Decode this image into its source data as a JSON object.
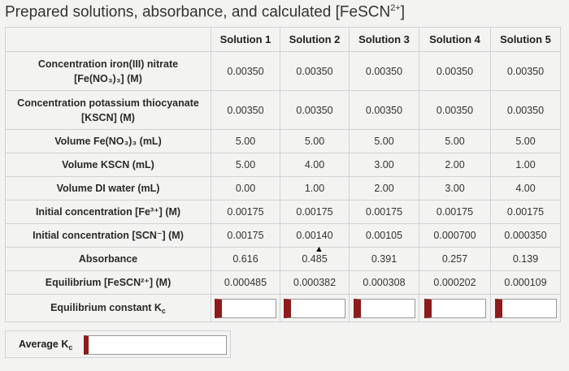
{
  "title": {
    "main": "Prepared solutions, absorbance, and calculated [FeSCN",
    "sup": "2+",
    "end": "]"
  },
  "columns": [
    "Solution 1",
    "Solution 2",
    "Solution 3",
    "Solution 4",
    "Solution 5"
  ],
  "rows": [
    {
      "label_a": "Concentration iron(III) nitrate",
      "label_b": "[Fe(NO₃)₃] (M)",
      "values": [
        "0.00350",
        "0.00350",
        "0.00350",
        "0.00350",
        "0.00350"
      ]
    },
    {
      "label_a": "Concentration potassium thiocyanate",
      "label_b": "[KSCN] (M)",
      "values": [
        "0.00350",
        "0.00350",
        "0.00350",
        "0.00350",
        "0.00350"
      ]
    },
    {
      "label_a": "Volume Fe(NO₃)₃ (mL)",
      "values": [
        "5.00",
        "5.00",
        "5.00",
        "5.00",
        "5.00"
      ]
    },
    {
      "label_a": "Volume KSCN (mL)",
      "values": [
        "5.00",
        "4.00",
        "3.00",
        "2.00",
        "1.00"
      ]
    },
    {
      "label_a": "Volume DI water (mL)",
      "values": [
        "0.00",
        "1.00",
        "2.00",
        "3.00",
        "4.00"
      ]
    },
    {
      "label_a": "Initial concentration [Fe³⁺] (M)",
      "values": [
        "0.00175",
        "0.00175",
        "0.00175",
        "0.00175",
        "0.00175"
      ]
    },
    {
      "label_a": "Initial concentration [SCN⁻] (M)",
      "values": [
        "0.00175",
        "0.00140",
        "0.00105",
        "0.000700",
        "0.000350"
      ]
    },
    {
      "label_a": "Absorbance",
      "values": [
        "0.616",
        "0.485",
        "0.391",
        "0.257",
        "0.139"
      ]
    },
    {
      "label_a": "Equilibrium [FeSCN²⁺] (M)",
      "values": [
        "0.000485",
        "0.000382",
        "0.000308",
        "0.000202",
        "0.000109"
      ]
    }
  ],
  "kc_row": {
    "label": "Equilibrium constant K",
    "label_sub": "c",
    "inputs": [
      "",
      "",
      "",
      "",
      ""
    ]
  },
  "average": {
    "label": "Average K",
    "label_sub": "c",
    "value": ""
  },
  "colors": {
    "accent": "#8e1b1b",
    "grid": "#cfd3d6"
  }
}
